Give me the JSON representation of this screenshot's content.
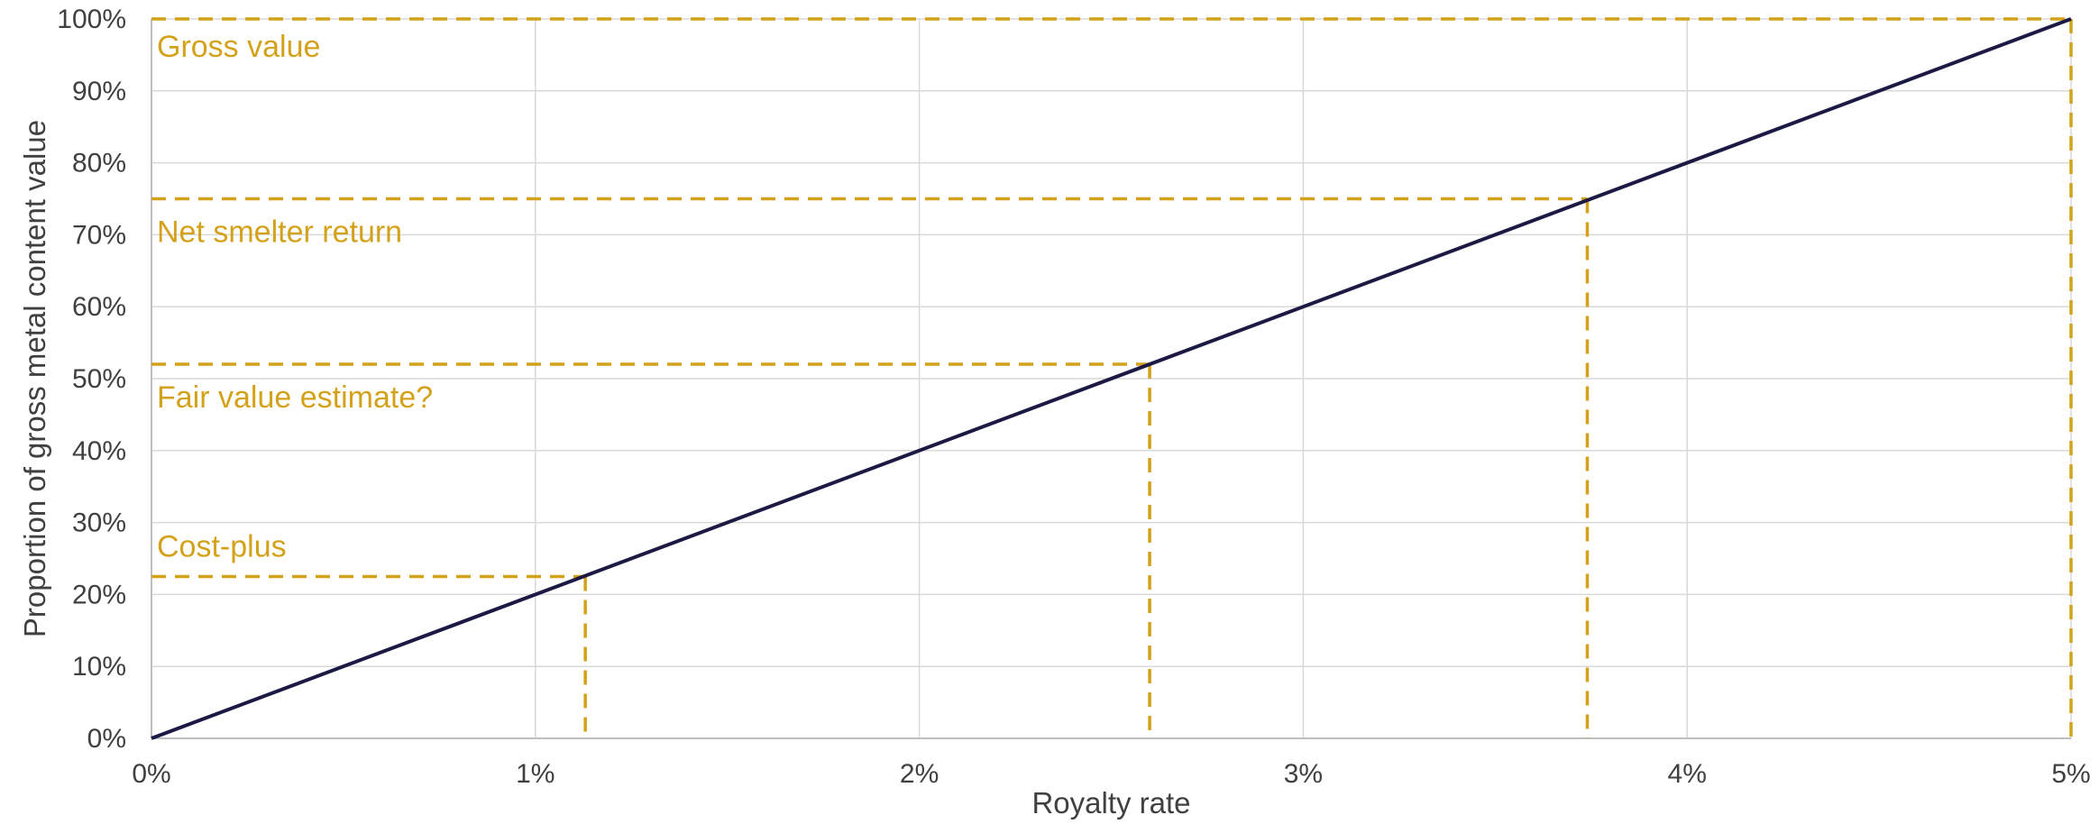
{
  "chart_data": {
    "type": "line",
    "title": "",
    "xlabel": "Royalty rate",
    "ylabel": "Proportion of gross metal content value",
    "xlim": [
      0,
      5
    ],
    "ylim": [
      0,
      100
    ],
    "x_ticks": [
      0,
      1,
      2,
      3,
      4,
      5
    ],
    "x_tick_labels": [
      "0%",
      "1%",
      "2%",
      "3%",
      "4%",
      "5%"
    ],
    "y_ticks": [
      0,
      10,
      20,
      30,
      40,
      50,
      60,
      70,
      80,
      90,
      100
    ],
    "y_tick_labels": [
      "0%",
      "10%",
      "20%",
      "30%",
      "40%",
      "50%",
      "60%",
      "70%",
      "80%",
      "90%",
      "100%"
    ],
    "grid": true,
    "series": [
      {
        "x": [
          0,
          5
        ],
        "y": [
          0,
          100
        ],
        "color": "#1c1a45"
      }
    ],
    "annotations": [
      {
        "label": "Cost-plus",
        "x": 1.13,
        "y": 22.5
      },
      {
        "label": "Fair value estimate?",
        "x": 2.6,
        "y": 52
      },
      {
        "label": "Net smelter return",
        "x": 3.74,
        "y": 75
      },
      {
        "label": "Gross value",
        "x": 5.0,
        "y": 100
      }
    ],
    "annotation_color": "#d4a21a",
    "grid_color": "#d9d9d9",
    "axis_color": "#bfbfbf"
  }
}
